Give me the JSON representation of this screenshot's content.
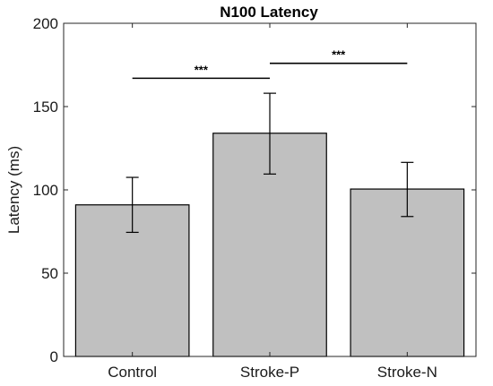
{
  "chart_data": {
    "type": "bar",
    "title": "N100 Latency",
    "xlabel": "",
    "ylabel": "Latency (ms)",
    "categories": [
      "Control",
      "Stroke-P",
      "Stroke-N"
    ],
    "values": [
      91,
      134,
      100.5
    ],
    "error_bars": [
      {
        "low": 74.5,
        "high": 107.5
      },
      {
        "low": 109.5,
        "high": 158
      },
      {
        "low": 84,
        "high": 116.5
      }
    ],
    "ylim": [
      0,
      200
    ],
    "yticks": [
      0,
      50,
      100,
      150,
      200
    ],
    "bar_color": "#c0c0c0",
    "grid": false,
    "significance": [
      {
        "from": "Control",
        "to": "Stroke-P",
        "y": 167,
        "label": "***"
      },
      {
        "from": "Stroke-P",
        "to": "Stroke-N",
        "y": 176,
        "label": "***"
      }
    ]
  }
}
